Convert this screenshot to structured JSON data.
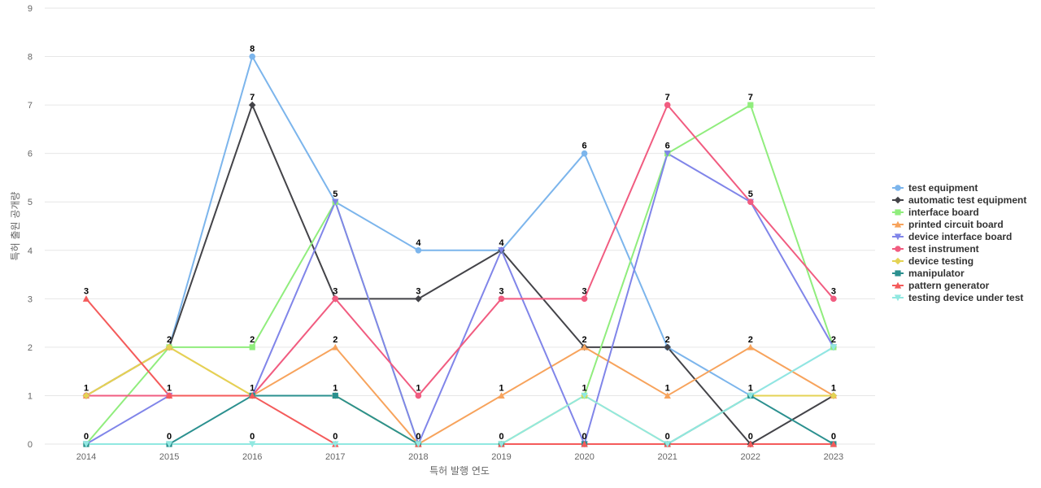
{
  "chart_data": {
    "type": "line",
    "title": "",
    "xlabel": "특허 발행 연도",
    "ylabel": "특허 출원 공개량",
    "categories": [
      "2014",
      "2015",
      "2016",
      "2017",
      "2018",
      "2019",
      "2020",
      "2021",
      "2022",
      "2023"
    ],
    "ylim": [
      0,
      9
    ],
    "yticks": [
      0,
      1,
      2,
      3,
      4,
      5,
      6,
      7,
      8,
      9
    ],
    "grid": true,
    "legend_position": "right",
    "series": [
      {
        "name": "test equipment",
        "color": "#7cb5ec",
        "marker": "circle",
        "values": [
          1,
          2,
          8,
          5,
          4,
          4,
          6,
          2,
          1,
          2
        ]
      },
      {
        "name": "automatic test equipment",
        "color": "#434348",
        "marker": "diamond",
        "values": [
          1,
          2,
          7,
          3,
          3,
          4,
          2,
          2,
          0,
          1
        ]
      },
      {
        "name": "interface board",
        "color": "#90ed7d",
        "marker": "square",
        "values": [
          0,
          2,
          2,
          5,
          0,
          0,
          1,
          6,
          7,
          2
        ]
      },
      {
        "name": "printed circuit board",
        "color": "#f7a35c",
        "marker": "triangle",
        "values": [
          1,
          2,
          1,
          2,
          0,
          1,
          2,
          1,
          2,
          1
        ]
      },
      {
        "name": "device interface board",
        "color": "#8085e9",
        "marker": "triangle-down",
        "values": [
          0,
          1,
          1,
          5,
          0,
          4,
          0,
          6,
          5,
          2
        ]
      },
      {
        "name": "test instrument",
        "color": "#f15c80",
        "marker": "circle",
        "values": [
          1,
          1,
          1,
          3,
          1,
          3,
          3,
          7,
          5,
          3
        ]
      },
      {
        "name": "device testing",
        "color": "#e4d354",
        "marker": "diamond",
        "values": [
          1,
          2,
          1,
          1,
          0,
          0,
          1,
          0,
          1,
          1
        ]
      },
      {
        "name": "manipulator",
        "color": "#2b908f",
        "marker": "square",
        "values": [
          0,
          0,
          1,
          1,
          0,
          0,
          0,
          0,
          1,
          0
        ]
      },
      {
        "name": "pattern generator",
        "color": "#f45b5b",
        "marker": "triangle",
        "values": [
          3,
          1,
          1,
          0,
          0,
          0,
          0,
          0,
          0,
          0
        ]
      },
      {
        "name": "testing device under test",
        "color": "#91e8e1",
        "marker": "triangle-down",
        "values": [
          0,
          0,
          0,
          0,
          0,
          0,
          1,
          0,
          1,
          2
        ]
      }
    ],
    "data_labels": [
      {
        "x": "2014",
        "value": 3
      },
      {
        "x": "2014",
        "value": 1
      },
      {
        "x": "2014",
        "value": 0
      },
      {
        "x": "2015",
        "value": 2
      },
      {
        "x": "2015",
        "value": 1
      },
      {
        "x": "2015",
        "value": 0
      },
      {
        "x": "2016",
        "value": 8
      },
      {
        "x": "2016",
        "value": 7
      },
      {
        "x": "2016",
        "value": 2
      },
      {
        "x": "2016",
        "value": 1
      },
      {
        "x": "2016",
        "value": 0
      },
      {
        "x": "2017",
        "value": 5
      },
      {
        "x": "2017",
        "value": 3
      },
      {
        "x": "2017",
        "value": 2
      },
      {
        "x": "2017",
        "value": 1
      },
      {
        "x": "2017",
        "value": 0
      },
      {
        "x": "2018",
        "value": 4
      },
      {
        "x": "2018",
        "value": 3
      },
      {
        "x": "2018",
        "value": 1
      },
      {
        "x": "2018",
        "value": 0
      },
      {
        "x": "2019",
        "value": 4
      },
      {
        "x": "2019",
        "value": 3
      },
      {
        "x": "2019",
        "value": 1
      },
      {
        "x": "2019",
        "value": 0
      },
      {
        "x": "2020",
        "value": 6
      },
      {
        "x": "2020",
        "value": 3
      },
      {
        "x": "2020",
        "value": 2
      },
      {
        "x": "2020",
        "value": 1
      },
      {
        "x": "2020",
        "value": 0
      },
      {
        "x": "2021",
        "value": 7
      },
      {
        "x": "2021",
        "value": 6
      },
      {
        "x": "2021",
        "value": 2
      },
      {
        "x": "2021",
        "value": 1
      },
      {
        "x": "2021",
        "value": 0
      },
      {
        "x": "2022",
        "value": 7
      },
      {
        "x": "2022",
        "value": 5
      },
      {
        "x": "2022",
        "value": 2
      },
      {
        "x": "2022",
        "value": 1
      },
      {
        "x": "2022",
        "value": 0
      },
      {
        "x": "2023",
        "value": 3
      },
      {
        "x": "2023",
        "value": 2
      },
      {
        "x": "2023",
        "value": 1
      },
      {
        "x": "2023",
        "value": 0
      }
    ]
  }
}
